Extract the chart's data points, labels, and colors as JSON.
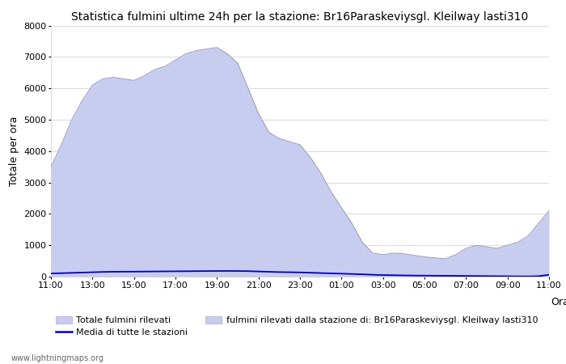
{
  "title": "Statistica fulmini ultime 24h per la stazione: Br16Paraskeviysgl. Kleilway lasti310",
  "ylabel": "Totale per ora",
  "xlabel_right": "Orario",
  "website": "www.lightningmaps.org",
  "x_labels": [
    "11:00",
    "13:00",
    "15:00",
    "17:00",
    "19:00",
    "21:00",
    "23:00",
    "01:00",
    "03:00",
    "05:00",
    "07:00",
    "09:00",
    "11:00"
  ],
  "ylim": [
    0,
    8000
  ],
  "yticks": [
    0,
    1000,
    2000,
    3000,
    4000,
    5000,
    6000,
    7000,
    8000
  ],
  "fill_color": "#c8ccee",
  "fill_edge_color": "#9999bb",
  "line_color": "#0000bb",
  "background_color": "#ffffff",
  "legend1_label": "Totale fulmini rilevati",
  "legend2_label": "Media di tutte le stazioni",
  "legend3_label": "fulmini rilevati dalla stazione di: Br16Paraskeviysgl. Kleilway lasti310",
  "total_y": [
    3500,
    4200,
    5000,
    5600,
    6100,
    6300,
    6350,
    6300,
    6250,
    6400,
    6600,
    6700,
    6900,
    7100,
    7200,
    7250,
    7300,
    7100,
    6800,
    6000,
    5200,
    4600,
    4400,
    4300,
    4200,
    3800,
    3300,
    2700,
    2200,
    1700,
    1100,
    750,
    700,
    750,
    730,
    680,
    630,
    600,
    570,
    700,
    900,
    1000,
    950,
    900,
    1000,
    1100,
    1300,
    1700,
    2100
  ],
  "station_y": [
    100,
    110,
    120,
    130,
    140,
    150,
    155,
    158,
    160,
    162,
    165,
    168,
    170,
    172,
    175,
    178,
    180,
    182,
    180,
    175,
    165,
    155,
    145,
    140,
    135,
    125,
    115,
    105,
    95,
    85,
    75,
    60,
    50,
    45,
    40,
    35,
    32,
    30,
    28,
    25,
    22,
    20,
    18,
    15,
    12,
    10,
    8,
    15,
    60
  ]
}
